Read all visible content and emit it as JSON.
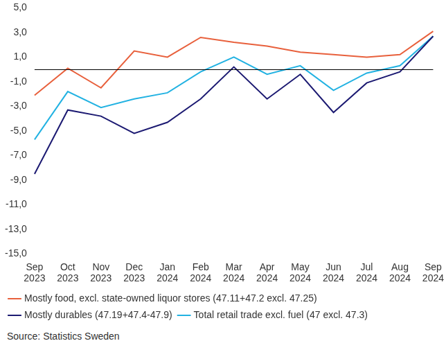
{
  "chart_data": {
    "type": "line",
    "categories": [
      "Sep 2023",
      "Oct 2023",
      "Nov 2023",
      "Dec 2023",
      "Jan 2024",
      "Feb 2024",
      "Mar 2024",
      "Apr 2024",
      "May 2024",
      "Jun 2024",
      "Jul 2024",
      "Aug 2024",
      "Sep 2024"
    ],
    "series": [
      {
        "name": "Mostly food, excl. state-owned liquor stores (47.11+47.2 excl. 47.25)",
        "color": "#e8603c",
        "values": [
          -2.1,
          0.1,
          -1.5,
          1.5,
          1.0,
          2.6,
          2.2,
          1.9,
          1.4,
          1.2,
          1.0,
          1.2,
          3.1
        ]
      },
      {
        "name": "Mostly durables (47.19+47.4-47.9)",
        "color": "#1c1a72",
        "values": [
          -8.5,
          -3.3,
          -3.8,
          -5.2,
          -4.3,
          -2.4,
          0.2,
          -2.4,
          -0.4,
          -3.5,
          -1.1,
          -0.2,
          2.7
        ]
      },
      {
        "name": "Total retail trade excl. fuel (47 excl. 47.3)",
        "color": "#22b2e2",
        "values": [
          -5.7,
          -1.8,
          -3.1,
          -2.4,
          -1.9,
          -0.2,
          1.0,
          -0.4,
          0.3,
          -1.7,
          -0.3,
          0.3,
          2.7
        ]
      }
    ],
    "ylim": [
      -15,
      5
    ],
    "yticks": [
      {
        "value": -15,
        "label": "-15,0"
      },
      {
        "value": -13,
        "label": "-13,0"
      },
      {
        "value": -11,
        "label": "-11,0"
      },
      {
        "value": -9,
        "label": "-9,0"
      },
      {
        "value": -7,
        "label": "-7,0"
      },
      {
        "value": -5,
        "label": "-5,0"
      },
      {
        "value": -3,
        "label": "-3,0"
      },
      {
        "value": -1,
        "label": "-1,0"
      },
      {
        "value": 1,
        "label": "1,0"
      },
      {
        "value": 3,
        "label": "3,0"
      },
      {
        "value": 5,
        "label": "5,0"
      }
    ],
    "grid": false,
    "legend": "bottom",
    "source": "Source: Statistics Sweden"
  }
}
